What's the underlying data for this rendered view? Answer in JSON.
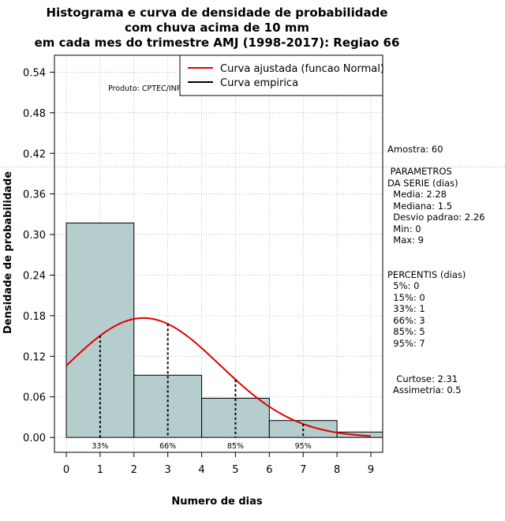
{
  "chart_data": {
    "type": "bar",
    "title_lines": [
      "Histograma e curva de densidade de probabilidade",
      "com chuva acima de 10 mm",
      "em cada mes do trimestre AMJ (1998-2017): Regiao 66"
    ],
    "xlabel": "Numero de dias",
    "ylabel": "Densidade de probabilidade",
    "xlim": [
      -0.35,
      9.35
    ],
    "ylim": [
      -0.022,
      0.565
    ],
    "x_ticks": [
      0,
      1,
      2,
      3,
      4,
      5,
      6,
      7,
      8,
      9
    ],
    "y_ticks": [
      0.0,
      0.06,
      0.12,
      0.18,
      0.24,
      0.3,
      0.36,
      0.42,
      0.48,
      0.54
    ],
    "y_tick_labels": [
      "0.00",
      "0.06",
      "0.12",
      "0.18",
      "0.24",
      "0.30",
      "0.36",
      "0.42",
      "0.48",
      "0.54"
    ],
    "histogram": [
      {
        "x0": 0,
        "x1": 2,
        "density": 0.317
      },
      {
        "x0": 2,
        "x1": 4,
        "density": 0.092
      },
      {
        "x0": 4,
        "x1": 6,
        "density": 0.058
      },
      {
        "x0": 6,
        "x1": 8,
        "density": 0.025
      },
      {
        "x0": 8,
        "x1": 10,
        "density": 0.008
      }
    ],
    "hline": 0.4,
    "normal_curve": {
      "mean": 2.28,
      "sd": 2.26,
      "from": 0,
      "to": 9
    },
    "percentile_lines": [
      {
        "x": 1,
        "label": "33%"
      },
      {
        "x": 3,
        "label": "66%"
      },
      {
        "x": 5,
        "label": "85%"
      },
      {
        "x": 7,
        "label": "95%"
      }
    ],
    "legend": {
      "position": "top-right",
      "entries": [
        {
          "label": "Curva ajustada (funcao Normal)",
          "color": "#e00000"
        },
        {
          "label": "Curva empirica",
          "color": "#000000"
        }
      ]
    },
    "annotation": "Produto: CPTEC/INPE",
    "colors": {
      "bars": "#b5cdcd",
      "curve": "#e00000",
      "grid": "#b0b0b0"
    }
  },
  "side_panel": {
    "sample": "Amostra: 60",
    "params": [
      " PARAMETROS",
      "DA SERIE (dias)",
      "  Media: 2.28",
      "  Mediana: 1.5",
      "  Desvio padrao: 2.26",
      "  Min: 0",
      "  Max: 9"
    ],
    "percentis": [
      "PERCENTIS (dias)",
      "  5%: 0",
      "  15%: 0",
      "  33%: 1",
      "  66%: 3",
      "  85%: 5",
      "  95%: 7"
    ],
    "shape": [
      "  Curtose: 2.31",
      "Assimetria: 0.5"
    ]
  }
}
